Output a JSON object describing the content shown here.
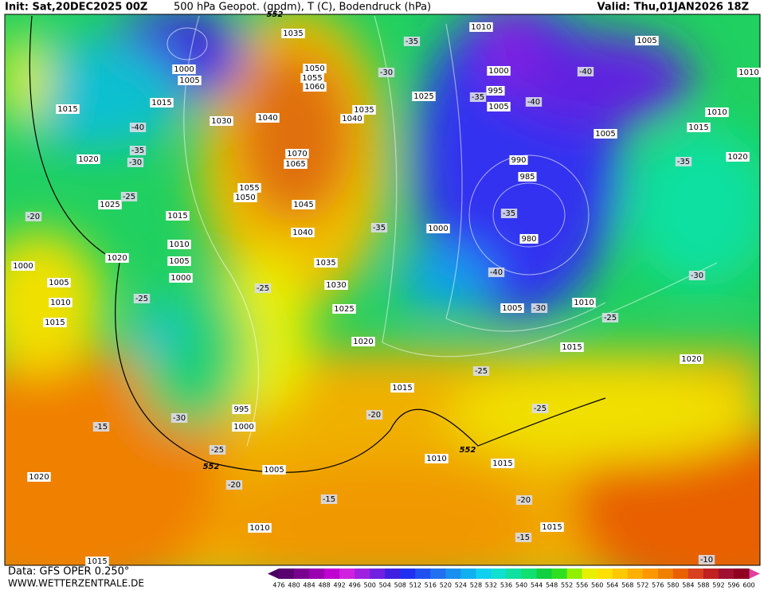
{
  "header": {
    "init": "Init: Sat,20DEC2025 00Z",
    "title": "500 hPa Geopot. (gpdm), T (C), Bodendruck (hPa)",
    "valid": "Valid: Thu,01JAN2026 18Z"
  },
  "footer": {
    "data": "Data: GFS OPER 0.250°",
    "site": "WWW.WETTERZENTRALE.DE"
  },
  "colorbar": {
    "ticks": [
      476,
      480,
      484,
      488,
      492,
      496,
      500,
      504,
      508,
      512,
      516,
      520,
      524,
      528,
      532,
      536,
      540,
      544,
      548,
      552,
      556,
      560,
      564,
      568,
      572,
      576,
      580,
      584,
      588,
      592,
      596,
      600
    ],
    "colors": [
      "#5a0070",
      "#7a0090",
      "#9a00b0",
      "#c000d0",
      "#d020e0",
      "#a020e0",
      "#7020e0",
      "#4020e0",
      "#2030f0",
      "#2050f0",
      "#2070f0",
      "#1890f0",
      "#10b0f0",
      "#10d0f0",
      "#10e0d0",
      "#10e0a0",
      "#10e070",
      "#10d040",
      "#30e020",
      "#90f000",
      "#e8f000",
      "#ffe000",
      "#ffc800",
      "#ffb000",
      "#ff9800",
      "#f08000",
      "#e86000",
      "#d84020",
      "#c02020",
      "#a01030",
      "#900020"
    ]
  },
  "labels": {
    "pressure": [
      "1035",
      "1000",
      "1005",
      "1015",
      "1015",
      "1030",
      "1050",
      "1055",
      "1060",
      "1040",
      "1035",
      "1040",
      "1070",
      "1065",
      "1055",
      "1050",
      "1045",
      "1040",
      "1035",
      "1030",
      "1025",
      "1020",
      "1015",
      "1010",
      "1005",
      "1000",
      "995",
      "1000",
      "1005",
      "1010",
      "1015",
      "1020",
      "1025",
      "1020",
      "1000",
      "1005",
      "1010",
      "1015",
      "1020",
      "1010",
      "1015",
      "1025",
      "1010",
      "1005",
      "1000",
      "995",
      "990",
      "985",
      "980",
      "1000",
      "1005",
      "1005",
      "1010",
      "1015",
      "1020",
      "1010",
      "1015",
      "1020",
      "1005",
      "1015",
      "1015",
      "1010"
    ],
    "temperature": [
      "-35",
      "-30",
      "-40",
      "-35",
      "-30",
      "-25",
      "-20",
      "-25",
      "-25",
      "-35",
      "-30",
      "-25",
      "-20",
      "-15",
      "-15",
      "-20",
      "-40",
      "-40",
      "-35",
      "-35",
      "-35",
      "-40",
      "-30",
      "-25",
      "-30",
      "-25",
      "-25",
      "-20",
      "-15",
      "-10"
    ],
    "contour": [
      "552",
      "552",
      "552"
    ]
  }
}
